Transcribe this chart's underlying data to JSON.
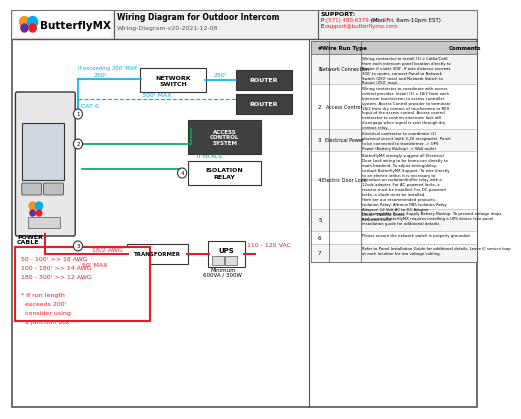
{
  "title": "Wiring Diagram for Outdoor Intercom",
  "subtitle": "Wiring-Diagram-v20-2021-12-08",
  "support_line1": "SUPPORT:",
  "support_line2": "P: (571) 480.6379 ext. 2 (Mon-Fri, 6am-10pm EST)",
  "support_line3": "E: support@butterflymx.com",
  "bg_color": "#ffffff",
  "header_bg": "#ffffff",
  "border_color": "#000000",
  "cyan": "#00aeef",
  "green": "#00a651",
  "red": "#ed1c24",
  "dark_red": "#c0392b",
  "table_header_bg": "#d0d0d0",
  "wire_run_types": [
    "Network Connection",
    "Access Control",
    "Electrical Power",
    "Electric Door Lock",
    "",
    "",
    ""
  ],
  "row_nums": [
    "1",
    "2",
    "3",
    "4",
    "5",
    "6",
    "7"
  ],
  "comments": [
    "Wiring contractor to install (1) x Cat6a/Cat6 from each intercom panel location directly to Router if under 300'. If wire distance exceeds 300' to router, connect Panel to Network Switch (250' max) and Network Switch to Router (250' max).",
    "Wiring contractor to coordinate with access control provider, install (1) x 18/2 from each Intercom touchscreen to access controller system. Access Control provider to terminate 18/2 from dry contact of touchscreen to REX Input of the access control. Access control contractor to confirm electronic lock will disengage when signal is sent through dry contact relay.",
    "Electrical contractor to coordinate (1) electrical circuit (with 3-20 receptacle). Panel to be connected to transformer -> UPS Power (Battery Backup) -> Wall outlet",
    "ButterflyMX strongly suggest all Electrical Door Lock wiring to be home-run directly to main headend. To adjust timing/delay, contact ButterflyMX Support. To wire directly to an electric strike, it is necessary to introduce an isolation/buffer relay with a 12vdc adapter. For AC-powered locks, a resistor must be installed. For DC-powered locks, a diode must be installed.\nHere are our recommended products:\nIsolation Relay: Altronix RBS Isolation Relay\nAdapter: 12 Volt AC to DC Adapter\nDiode: 1N4004 Series\nResistor: 1450i",
    "Uninterruptible Power Supply Battery Backup. To prevent voltage drops and surges, ButterflyMX requires installing a UPS device (see panel installation guide for additional details).",
    "Please ensure the network switch is properly grounded.",
    "Refer to Panel Installation Guide for additional details. Leave 6' service loop at each location for low voltage cabling."
  ]
}
